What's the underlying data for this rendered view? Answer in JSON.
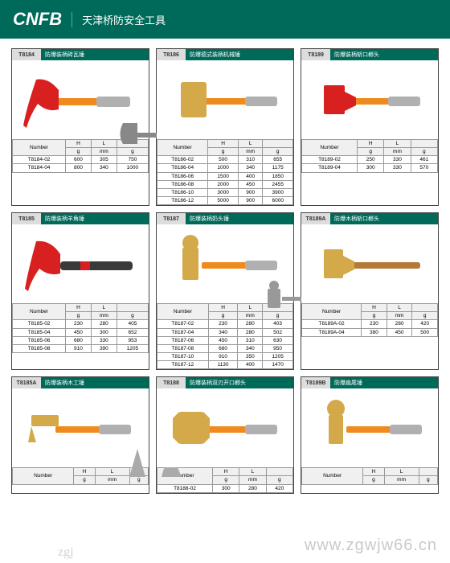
{
  "header": {
    "brand": "CNFB",
    "subtitle": "天津桥防安全工具"
  },
  "watermark": "www.zgwjw66.cn",
  "cols": {
    "num": "Number",
    "h": "H",
    "h_u": "g",
    "l": "L",
    "l_u": "mm",
    "g": "g"
  },
  "cards": [
    {
      "code": "T8184",
      "title": "防爆装柄砖瓦锤",
      "img": "claw-red",
      "rows": [
        [
          "T8184-02",
          "600",
          "305",
          "750"
        ],
        [
          "T8184-04",
          "800",
          "340",
          "1000"
        ]
      ]
    },
    {
      "code": "T8186",
      "title": "防爆德式装柄机械锤",
      "img": "sledge-brass",
      "rows": [
        [
          "T8186-02",
          "500",
          "310",
          "655"
        ],
        [
          "T8186-04",
          "1000",
          "340",
          "1175"
        ],
        [
          "T8186-06",
          "1500",
          "400",
          "1850"
        ],
        [
          "T8186-08",
          "2000",
          "450",
          "2455"
        ],
        [
          "T8186-10",
          "3000",
          "900",
          "3900"
        ],
        [
          "T8186-12",
          "5000",
          "900",
          "6000"
        ]
      ]
    },
    {
      "code": "T8189",
      "title": "防爆装柄斩口榔头",
      "img": "cross-red",
      "rows": [
        [
          "T8189-02",
          "250",
          "330",
          "461"
        ],
        [
          "T8189-04",
          "300",
          "330",
          "570"
        ]
      ]
    },
    {
      "code": "T8185",
      "title": "防爆装柄羊角锤",
      "img": "claw-red-black",
      "rows": [
        [
          "T8185-02",
          "230",
          "280",
          "405"
        ],
        [
          "T8185-04",
          "450",
          "300",
          "652"
        ],
        [
          "T8185-06",
          "680",
          "330",
          "953"
        ],
        [
          "T8185-08",
          "910",
          "390",
          "1205"
        ]
      ]
    },
    {
      "code": "T8187",
      "title": "防爆装柄奶头锤",
      "img": "ball-brass",
      "rows": [
        [
          "T8187-02",
          "230",
          "280",
          "403"
        ],
        [
          "T8187-04",
          "340",
          "280",
          "502"
        ],
        [
          "T8187-06",
          "450",
          "310",
          "630"
        ],
        [
          "T8187-08",
          "680",
          "340",
          "950"
        ],
        [
          "T8187-10",
          "910",
          "350",
          "1205"
        ],
        [
          "T8187-12",
          "1130",
          "400",
          "1470"
        ]
      ]
    },
    {
      "code": "T8189A",
      "title": "防爆木柄斩口榔头",
      "img": "cross-brass-wood",
      "rows": [
        [
          "T8189A-02",
          "230",
          "280",
          "420"
        ],
        [
          "T8189A-04",
          "380",
          "450",
          "500"
        ]
      ]
    },
    {
      "code": "T8185A",
      "title": "防爆装柄木工锤",
      "img": "joiner-brass",
      "rows": [
        [
          "",
          "H",
          "L",
          ""
        ]
      ],
      "cutoff": true
    },
    {
      "code": "T8188",
      "title": "防爆装柄双刃开口榔头",
      "img": "double-brass",
      "rows": [
        [
          "T8188-02",
          "300",
          "280",
          "420"
        ]
      ]
    },
    {
      "code": "T8189B",
      "title": "防爆扁尾锤",
      "img": "ball-brass-2",
      "rows": []
    }
  ]
}
